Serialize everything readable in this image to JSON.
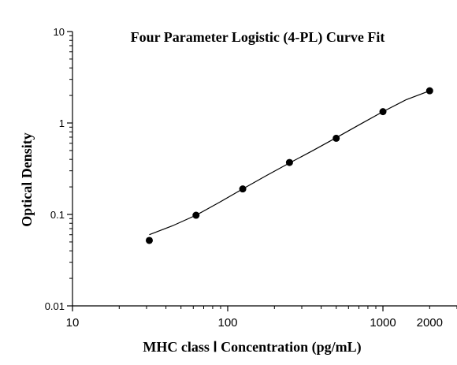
{
  "chart_data": {
    "type": "scatter",
    "title": "Four Parameter Logistic (4-PL) Curve Fit",
    "xlabel": "MHC class Ⅰ Concentration (pg/mL)",
    "ylabel": "Optical Density",
    "x_scale": "log",
    "y_scale": "log",
    "xlim": [
      10,
      3000
    ],
    "ylim": [
      0.01,
      10
    ],
    "x_ticks": [
      {
        "value": 10,
        "label": "10"
      },
      {
        "value": 100,
        "label": "100"
      },
      {
        "value": 1000,
        "label": "1000"
      },
      {
        "value": 2000,
        "label": "2000"
      }
    ],
    "y_ticks": [
      {
        "value": 0.01,
        "label": "0.01"
      },
      {
        "value": 0.1,
        "label": "0.1"
      },
      {
        "value": 1,
        "label": "1"
      },
      {
        "value": 10,
        "label": "10"
      }
    ],
    "grid": false,
    "points": [
      {
        "x": 31.25,
        "y": 0.052
      },
      {
        "x": 62.5,
        "y": 0.098
      },
      {
        "x": 125,
        "y": 0.19
      },
      {
        "x": 250,
        "y": 0.37
      },
      {
        "x": 500,
        "y": 0.68
      },
      {
        "x": 1000,
        "y": 1.33
      },
      {
        "x": 2000,
        "y": 2.25
      }
    ],
    "fit_curve": [
      {
        "x": 31.25,
        "y": 0.06
      },
      {
        "x": 44,
        "y": 0.075
      },
      {
        "x": 62.5,
        "y": 0.098
      },
      {
        "x": 88,
        "y": 0.135
      },
      {
        "x": 125,
        "y": 0.19
      },
      {
        "x": 177,
        "y": 0.265
      },
      {
        "x": 250,
        "y": 0.365
      },
      {
        "x": 354,
        "y": 0.5
      },
      {
        "x": 500,
        "y": 0.69
      },
      {
        "x": 707,
        "y": 0.96
      },
      {
        "x": 1000,
        "y": 1.33
      },
      {
        "x": 1414,
        "y": 1.8
      },
      {
        "x": 2000,
        "y": 2.25
      }
    ],
    "colors": {
      "points": "#000000",
      "curve": "#000000",
      "axes": "#000000"
    }
  }
}
